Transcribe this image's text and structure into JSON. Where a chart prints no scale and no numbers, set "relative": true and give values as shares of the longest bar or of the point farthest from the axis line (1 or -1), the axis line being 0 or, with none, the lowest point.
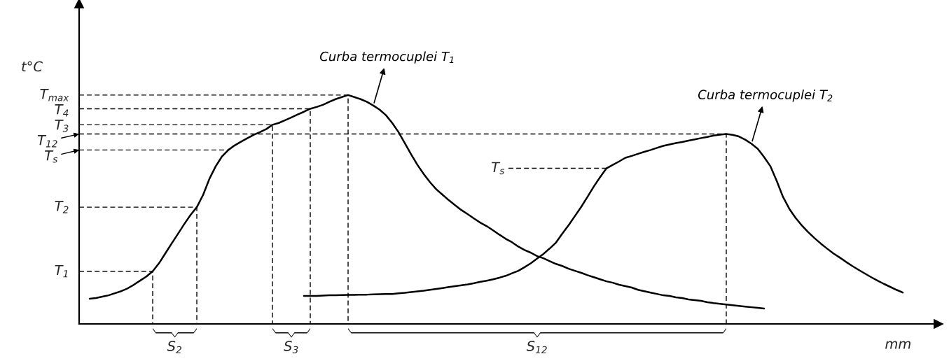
{
  "chart_data": {
    "type": "line",
    "relative": true,
    "xlabel": "mm",
    "ylabel": "t°C",
    "tick_labels": false,
    "categories": [
      null,
      null,
      null,
      null,
      null,
      null,
      null,
      null,
      null,
      null,
      null,
      null,
      null,
      null,
      null,
      null,
      null,
      null,
      null,
      null,
      null,
      null,
      null,
      null,
      null,
      null,
      null,
      null,
      null,
      null,
      null,
      null,
      null,
      null,
      null,
      null,
      null,
      null,
      null,
      null,
      null,
      null,
      null,
      null,
      null,
      null,
      null,
      null,
      null,
      null,
      null,
      null,
      null,
      null,
      null,
      null,
      null,
      null,
      null,
      null,
      null,
      null,
      null,
      null,
      null,
      null,
      null,
      null,
      null,
      null,
      null,
      null,
      null,
      null,
      null,
      null,
      null,
      null,
      null,
      null,
      null,
      null,
      null,
      null,
      null,
      null,
      null,
      null,
      null,
      null,
      null,
      null,
      null,
      null,
      null,
      null,
      null,
      null,
      null,
      null,
      null,
      null,
      null,
      null,
      null,
      null,
      null,
      null,
      null,
      null,
      null,
      null,
      null,
      null,
      null,
      null,
      null,
      null,
      null,
      null,
      null,
      null,
      null,
      null,
      null,
      null,
      null,
      null,
      null,
      null
    ],
    "series": [
      {
        "name": "Curba termocuplei T$_{1}$",
        "color": "#000000",
        "values": [
          0.11,
          0.113,
          0.119,
          0.125,
          0.134,
          0.143,
          0.155,
          0.171,
          0.189,
          0.207,
          0.23,
          0.265,
          0.308,
          0.351,
          0.393,
          0.436,
          0.476,
          0.51,
          0.564,
          0.634,
          0.689,
          0.732,
          0.76,
          0.78,
          0.796,
          0.811,
          0.826,
          0.838,
          0.851,
          0.87,
          0.878,
          0.89,
          0.902,
          0.915,
          0.927,
          0.94,
          0.948,
          0.957,
          0.97,
          0.982,
          0.991,
          1.0,
          0.991,
          0.982,
          0.97,
          0.954,
          0.936,
          0.912,
          0.878,
          0.838,
          0.79,
          0.741,
          0.695,
          0.655,
          0.619,
          0.588,
          0.564,
          0.54,
          0.518,
          0.497,
          0.479,
          0.46,
          0.442,
          0.427,
          0.409,
          0.39,
          0.372,
          0.357,
          0.338,
          0.323,
          0.311,
          0.296,
          0.287,
          0.274,
          0.262,
          0.253,
          0.241,
          0.232,
          0.223,
          0.213,
          0.204,
          0.195,
          0.186,
          0.18,
          0.171,
          0.165,
          0.159,
          0.149,
          0.143,
          0.137,
          0.131,
          0.125,
          0.122,
          0.116,
          0.113,
          0.107,
          0.104,
          0.101,
          0.095,
          0.091,
          0.088,
          0.085,
          0.082,
          0.079,
          0.076,
          0.073,
          0.07,
          0.067,
          null,
          null,
          null,
          null,
          null,
          null,
          null,
          null,
          null,
          null,
          null,
          null,
          null,
          null,
          null,
          null,
          null,
          null,
          null,
          null,
          null,
          null
        ]
      },
      {
        "name": "Curba termocuplei T$_{2}$",
        "color": "#000000",
        "values": [
          null,
          null,
          null,
          null,
          null,
          null,
          null,
          null,
          null,
          null,
          null,
          null,
          null,
          null,
          null,
          null,
          null,
          null,
          null,
          null,
          null,
          null,
          null,
          null,
          null,
          null,
          null,
          null,
          null,
          null,
          null,
          null,
          null,
          null,
          0.122,
          0.122,
          0.122,
          0.124,
          0.125,
          0.125,
          0.126,
          0.127,
          0.127,
          0.128,
          0.128,
          0.129,
          0.13,
          0.131,
          0.131,
          0.134,
          0.136,
          0.139,
          0.142,
          0.145,
          0.149,
          0.153,
          0.157,
          0.161,
          0.165,
          0.169,
          0.173,
          0.178,
          0.184,
          0.189,
          0.195,
          0.202,
          0.21,
          0.221,
          0.232,
          0.248,
          0.265,
          0.286,
          0.306,
          0.33,
          0.356,
          0.395,
          0.432,
          0.472,
          0.512,
          0.556,
          0.601,
          0.642,
          0.68,
          0.695,
          0.71,
          0.726,
          0.734,
          0.743,
          0.752,
          0.76,
          0.769,
          0.778,
          0.784,
          0.79,
          0.795,
          0.801,
          0.806,
          0.812,
          0.817,
          0.823,
          0.827,
          0.83,
          0.826,
          0.819,
          0.805,
          0.787,
          0.765,
          0.729,
          0.689,
          0.625,
          0.555,
          0.503,
          0.463,
          0.43,
          0.401,
          0.375,
          0.351,
          0.329,
          0.308,
          0.29,
          0.271,
          0.253,
          0.236,
          0.22,
          0.204,
          0.189,
          0.175,
          0.162,
          0.149,
          0.137
        ]
      }
    ],
    "ref_lines": [
      {
        "axis": "y",
        "value": 0.23,
        "label": "T$_{1}$",
        "line_style": "dashed"
      },
      {
        "axis": "y",
        "value": 0.51,
        "label": "T$_{2}$",
        "line_style": "dashed"
      },
      {
        "axis": "y",
        "value": 0.87,
        "label": "T$_{3}$",
        "line_style": "dashed"
      },
      {
        "axis": "y",
        "value": 0.94,
        "label": "T$_{4}$",
        "line_style": "dashed"
      },
      {
        "axis": "y",
        "value": 1.0,
        "label": "T$_{max}$",
        "line_style": "dashed"
      },
      {
        "axis": "y",
        "value": 0.83,
        "label": "T$_{12}$",
        "line_style": "dashed"
      },
      {
        "axis": "y",
        "value": 0.76,
        "label": "T$_{s}$",
        "line_style": "dashed"
      },
      {
        "axis": "y",
        "value": 0.68,
        "label": "T$_{s}$",
        "line_style": "dashed"
      }
    ],
    "annotations": [
      "S$_{2}$",
      "S$_{3}$",
      "S$_{12}$"
    ]
  }
}
